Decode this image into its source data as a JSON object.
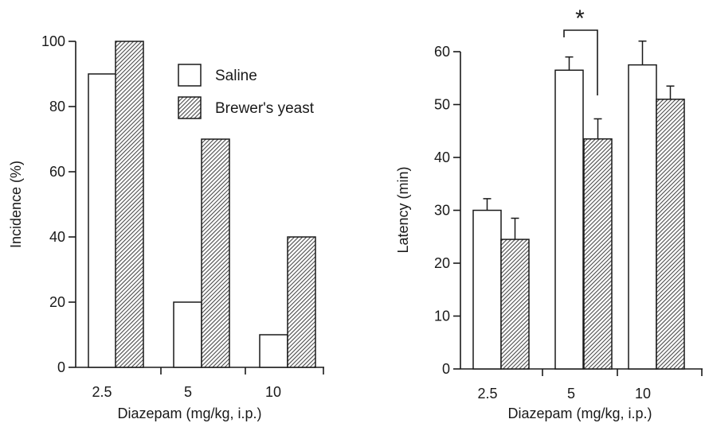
{
  "colors": {
    "saline": "#ffffff",
    "brewers_yeast_hatch": "#555555",
    "ink": "#1a1a1a"
  },
  "legend": {
    "position": "top-right of left panel",
    "entries": [
      {
        "name": "Saline",
        "style": "open"
      },
      {
        "name": "Brewer's yeast",
        "style": "hatched"
      }
    ]
  },
  "chart_data": [
    {
      "type": "bar",
      "categories": [
        "2.5",
        "5",
        "10"
      ],
      "series": [
        {
          "name": "Saline",
          "values": [
            90,
            20,
            10
          ]
        },
        {
          "name": "Brewer's yeast",
          "values": [
            100,
            70,
            40
          ]
        }
      ],
      "xlabel": "Diazepam (mg/kg, i.p.)",
      "ylabel": "Incidence (%)",
      "ylim": [
        0,
        100
      ],
      "yticks": [
        0,
        20,
        40,
        60,
        80,
        100
      ],
      "legend": "top-right",
      "grid": false
    },
    {
      "type": "bar",
      "categories": [
        "2.5",
        "5",
        "10"
      ],
      "series": [
        {
          "name": "Saline",
          "values": [
            30,
            56.5,
            57.5
          ],
          "errors": [
            2.2,
            2.5,
            4.5
          ]
        },
        {
          "name": "Brewer's yeast",
          "values": [
            24.5,
            43.5,
            51
          ],
          "errors": [
            4,
            3.8,
            2.5
          ]
        }
      ],
      "xlabel": "Diazepam (mg/kg, i.p.)",
      "ylabel": "Latency (min)",
      "ylim": [
        0,
        60
      ],
      "yticks": [
        0,
        10,
        20,
        30,
        40,
        50,
        60
      ],
      "annotations": [
        {
          "text": "*",
          "category": "5"
        }
      ],
      "grid": false
    }
  ]
}
